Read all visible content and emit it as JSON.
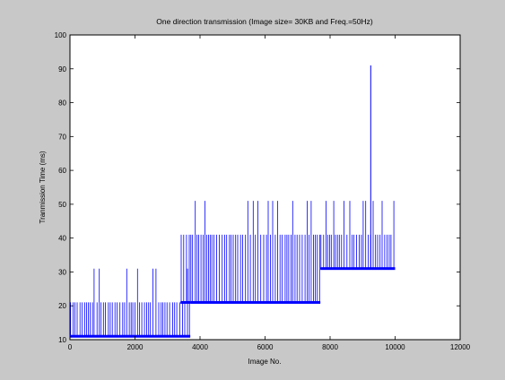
{
  "chart_data": {
    "type": "line",
    "title": "One direction transmission (Image size= 30KB and Freq.=50Hz)",
    "xlabel": "Image No.",
    "ylabel": "Tranmission Time (ms)",
    "xlim": [
      0,
      12000
    ],
    "ylim": [
      10,
      100
    ],
    "x_ticks": [
      0,
      2000,
      4000,
      6000,
      8000,
      10000,
      12000
    ],
    "y_ticks": [
      10,
      20,
      30,
      40,
      50,
      60,
      70,
      80,
      90,
      100
    ],
    "grid": false,
    "legend": "none",
    "series": [
      {
        "color": "#0000ff",
        "segments": [
          {
            "x_start": 0,
            "x_end": 3700,
            "baseline_ms": 11,
            "spike_levels_ms": [
              21,
              31
            ]
          },
          {
            "x_start": 3400,
            "x_end": 3700,
            "baseline_ms": 21,
            "spike_levels_ms": [
              41
            ]
          },
          {
            "x_start": 3700,
            "x_end": 7700,
            "baseline_ms": 21,
            "spike_levels_ms": [
              41,
              51
            ]
          },
          {
            "x_start": 7700,
            "x_end": 10000,
            "baseline_ms": 31,
            "spike_levels_ms": [
              41,
              51,
              91
            ]
          }
        ],
        "max_value_ms": 91,
        "max_value_x": 9250
      }
    ]
  }
}
